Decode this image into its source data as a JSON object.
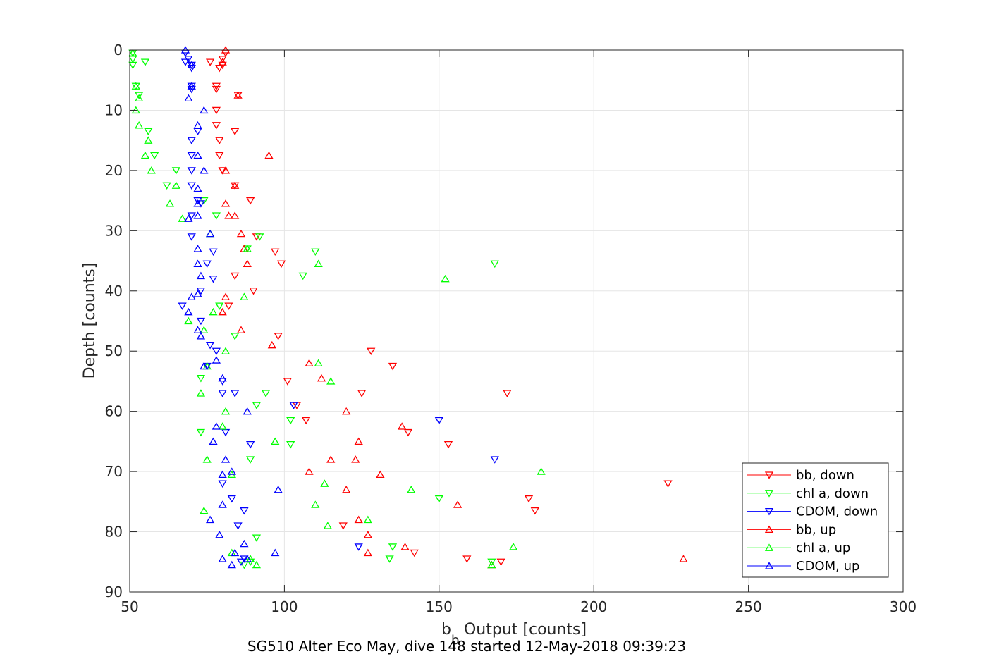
{
  "chart_data": {
    "type": "scatter",
    "xlabel_main": "b",
    "xlabel_sub": "b",
    "xlabel_rest": " Output [counts]",
    "ylabel": "Depth [counts]",
    "caption": "SG510 Alter Eco May, dive 148 started 12-May-2018 09:39:23",
    "xlim": [
      50,
      300
    ],
    "ylim": [
      0,
      90
    ],
    "y_reversed": true,
    "grid": true,
    "legend_position": "bottom-right",
    "x_ticks": [
      "50",
      "100",
      "150",
      "200",
      "250",
      "300"
    ],
    "y_ticks": [
      "0",
      "10",
      "20",
      "30",
      "40",
      "50",
      "60",
      "70",
      "80",
      "90"
    ],
    "series": [
      {
        "name": "bb, down",
        "color": "#ff0000",
        "marker": "triangle-down",
        "points": [
          [
            81,
            0.5
          ],
          [
            80,
            1.5
          ],
          [
            76,
            2.0
          ],
          [
            80,
            2.5
          ],
          [
            79,
            3.0
          ],
          [
            78,
            6.0
          ],
          [
            78,
            6.5
          ],
          [
            85,
            7.5
          ],
          [
            78,
            10.0
          ],
          [
            78,
            12.5
          ],
          [
            84,
            13.5
          ],
          [
            79,
            15.0
          ],
          [
            79,
            17.5
          ],
          [
            80,
            20.0
          ],
          [
            84,
            22.5
          ],
          [
            89,
            25.0
          ],
          [
            91,
            31.0
          ],
          [
            97,
            33.5
          ],
          [
            99,
            35.5
          ],
          [
            84,
            37.5
          ],
          [
            90,
            40.0
          ],
          [
            82,
            42.5
          ],
          [
            98,
            47.5
          ],
          [
            128,
            50.0
          ],
          [
            135,
            52.5
          ],
          [
            101,
            55.0
          ],
          [
            125,
            57.0
          ],
          [
            172,
            57.0
          ],
          [
            104,
            59.0
          ],
          [
            107,
            61.5
          ],
          [
            140,
            63.5
          ],
          [
            153,
            65.5
          ],
          [
            224,
            72.0
          ],
          [
            179,
            74.5
          ],
          [
            181,
            76.5
          ],
          [
            119,
            79.0
          ],
          [
            142,
            83.5
          ],
          [
            159,
            84.5
          ],
          [
            170,
            85.0
          ]
        ]
      },
      {
        "name": "chl a, down",
        "color": "#00ff00",
        "marker": "triangle-down",
        "points": [
          [
            51,
            0.5
          ],
          [
            51,
            1.5
          ],
          [
            55,
            2.0
          ],
          [
            51,
            2.5
          ],
          [
            52,
            6.0
          ],
          [
            53,
            7.5
          ],
          [
            56,
            13.5
          ],
          [
            58,
            17.5
          ],
          [
            65,
            20.0
          ],
          [
            62,
            22.5
          ],
          [
            74,
            25.0
          ],
          [
            78,
            27.5
          ],
          [
            92,
            31.0
          ],
          [
            88,
            33.0
          ],
          [
            110,
            33.5
          ],
          [
            168,
            35.5
          ],
          [
            106,
            37.5
          ],
          [
            79,
            42.5
          ],
          [
            84,
            47.5
          ],
          [
            73,
            54.5
          ],
          [
            94,
            57.0
          ],
          [
            91,
            59.0
          ],
          [
            102,
            61.5
          ],
          [
            73,
            63.5
          ],
          [
            102,
            65.5
          ],
          [
            89,
            68.0
          ],
          [
            150,
            74.5
          ],
          [
            91,
            81.0
          ],
          [
            135,
            82.5
          ],
          [
            134,
            84.5
          ],
          [
            167,
            85.0
          ],
          [
            89,
            85.0
          ],
          [
            87,
            85.5
          ]
        ]
      },
      {
        "name": "CDOM, down",
        "color": "#0000ff",
        "marker": "triangle-down",
        "points": [
          [
            68,
            0.5
          ],
          [
            69,
            1.5
          ],
          [
            68,
            2.0
          ],
          [
            70,
            2.5
          ],
          [
            70,
            3.0
          ],
          [
            70,
            6.0
          ],
          [
            70,
            6.5
          ],
          [
            72,
            13.5
          ],
          [
            70,
            15.0
          ],
          [
            70,
            17.5
          ],
          [
            70,
            20.0
          ],
          [
            70,
            22.5
          ],
          [
            72,
            25.0
          ],
          [
            73,
            25.5
          ],
          [
            70,
            27.5
          ],
          [
            70,
            31.0
          ],
          [
            77,
            33.5
          ],
          [
            75,
            35.5
          ],
          [
            77,
            38.0
          ],
          [
            73,
            40.0
          ],
          [
            67,
            42.5
          ],
          [
            73,
            45.0
          ],
          [
            76,
            49.0
          ],
          [
            78,
            50.0
          ],
          [
            75,
            52.5
          ],
          [
            80,
            55.0
          ],
          [
            80,
            57.0
          ],
          [
            84,
            57.0
          ],
          [
            103,
            59.0
          ],
          [
            150,
            61.5
          ],
          [
            81,
            63.5
          ],
          [
            89,
            65.5
          ],
          [
            168,
            68.0
          ],
          [
            80,
            72.0
          ],
          [
            83,
            74.5
          ],
          [
            87,
            76.5
          ],
          [
            85,
            79.0
          ],
          [
            124,
            82.5
          ],
          [
            87,
            84.5
          ],
          [
            86,
            85.0
          ]
        ]
      },
      {
        "name": "bb, up",
        "color": "#ff0000",
        "marker": "triangle-up",
        "points": [
          [
            81,
            0.0
          ],
          [
            80,
            2.0
          ],
          [
            85,
            7.5
          ],
          [
            95,
            17.5
          ],
          [
            81,
            20.0
          ],
          [
            84,
            22.5
          ],
          [
            81,
            25.5
          ],
          [
            84,
            27.5
          ],
          [
            82,
            27.5
          ],
          [
            86,
            30.5
          ],
          [
            87,
            33.0
          ],
          [
            88,
            35.5
          ],
          [
            81,
            41.0
          ],
          [
            80,
            43.5
          ],
          [
            86,
            46.5
          ],
          [
            96,
            49.0
          ],
          [
            108,
            52.0
          ],
          [
            112,
            54.5
          ],
          [
            120,
            60.0
          ],
          [
            138,
            62.5
          ],
          [
            124,
            65.0
          ],
          [
            115,
            68.0
          ],
          [
            123,
            68.0
          ],
          [
            131,
            70.5
          ],
          [
            108,
            70.0
          ],
          [
            120,
            73.0
          ],
          [
            156,
            75.5
          ],
          [
            124,
            78.0
          ],
          [
            127,
            80.5
          ],
          [
            139,
            82.5
          ],
          [
            127,
            83.5
          ],
          [
            229,
            84.5
          ],
          [
            167,
            85.5
          ]
        ]
      },
      {
        "name": "chl a, up",
        "color": "#00ff00",
        "marker": "triangle-up",
        "points": [
          [
            51,
            0.5
          ],
          [
            52,
            6.0
          ],
          [
            53,
            8.0
          ],
          [
            52,
            10.0
          ],
          [
            53,
            12.5
          ],
          [
            56,
            15.0
          ],
          [
            55,
            17.5
          ],
          [
            57,
            20.0
          ],
          [
            65,
            22.5
          ],
          [
            63,
            25.5
          ],
          [
            67,
            28.0
          ],
          [
            76,
            30.5
          ],
          [
            88,
            33.0
          ],
          [
            111,
            35.5
          ],
          [
            152,
            38.0
          ],
          [
            87,
            41.0
          ],
          [
            77,
            43.5
          ],
          [
            69,
            45.0
          ],
          [
            74,
            46.5
          ],
          [
            81,
            50.0
          ],
          [
            111,
            52.0
          ],
          [
            75,
            52.5
          ],
          [
            115,
            55.0
          ],
          [
            73,
            57.0
          ],
          [
            81,
            60.0
          ],
          [
            80,
            62.5
          ],
          [
            97,
            65.0
          ],
          [
            75,
            68.0
          ],
          [
            183,
            70.0
          ],
          [
            83,
            70.5
          ],
          [
            113,
            72.0
          ],
          [
            141,
            73.0
          ],
          [
            110,
            75.5
          ],
          [
            74,
            76.5
          ],
          [
            114,
            79.0
          ],
          [
            127,
            78.0
          ],
          [
            174,
            82.5
          ],
          [
            83,
            83.5
          ],
          [
            89,
            84.5
          ],
          [
            91,
            85.5
          ],
          [
            167,
            85.5
          ]
        ]
      },
      {
        "name": "CDOM, up",
        "color": "#0000ff",
        "marker": "triangle-up",
        "points": [
          [
            68,
            0.0
          ],
          [
            70,
            2.5
          ],
          [
            70,
            6.0
          ],
          [
            69,
            8.0
          ],
          [
            74,
            10.0
          ],
          [
            72,
            12.5
          ],
          [
            72,
            17.5
          ],
          [
            74,
            20.0
          ],
          [
            72,
            23.0
          ],
          [
            72,
            25.5
          ],
          [
            72,
            27.5
          ],
          [
            69,
            28.0
          ],
          [
            76,
            30.5
          ],
          [
            72,
            33.0
          ],
          [
            72,
            35.5
          ],
          [
            73,
            37.5
          ],
          [
            72,
            40.5
          ],
          [
            70,
            41.0
          ],
          [
            69,
            43.5
          ],
          [
            72,
            46.5
          ],
          [
            73,
            47.5
          ],
          [
            78,
            51.5
          ],
          [
            74,
            52.5
          ],
          [
            80,
            54.5
          ],
          [
            88,
            60.0
          ],
          [
            78,
            62.5
          ],
          [
            77,
            65.0
          ],
          [
            81,
            68.0
          ],
          [
            83,
            70.0
          ],
          [
            80,
            70.5
          ],
          [
            98,
            73.0
          ],
          [
            80,
            75.5
          ],
          [
            76,
            78.0
          ],
          [
            79,
            80.5
          ],
          [
            87,
            82.0
          ],
          [
            97,
            83.5
          ],
          [
            84,
            83.5
          ],
          [
            80,
            84.5
          ],
          [
            88,
            84.5
          ],
          [
            83,
            85.5
          ]
        ]
      }
    ]
  }
}
